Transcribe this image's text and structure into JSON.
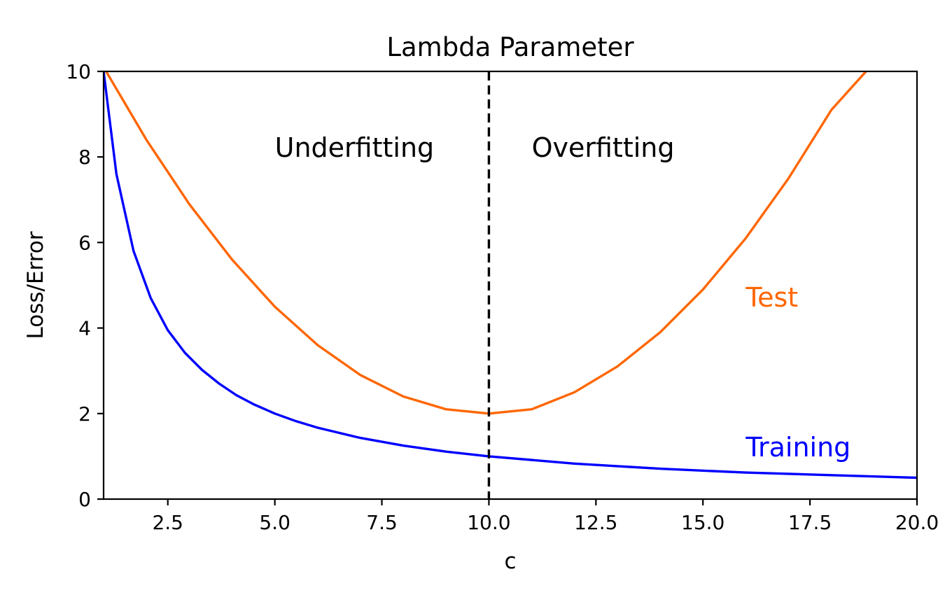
{
  "chart_data": {
    "type": "line",
    "title": "Lambda Parameter",
    "xlabel": "c",
    "ylabel": "Loss/Error",
    "xlim": [
      1,
      20
    ],
    "ylim": [
      0,
      10
    ],
    "xticks": [
      2.5,
      5.0,
      7.5,
      10.0,
      12.5,
      15.0,
      17.5,
      20.0
    ],
    "xtick_labels": [
      "2.5",
      "5.0",
      "7.5",
      "10.0",
      "12.5",
      "15.0",
      "17.5",
      "20.0"
    ],
    "yticks": [
      0,
      2,
      4,
      6,
      8,
      10
    ],
    "ytick_labels": [
      "0",
      "2",
      "4",
      "6",
      "8",
      "10"
    ],
    "grid": false,
    "legend": "none",
    "series": [
      {
        "color": "#0000ff",
        "x": [
          1.0,
          1.3,
          1.7,
          2.1,
          2.5,
          2.9,
          3.3,
          3.7,
          4.1,
          4.5,
          5.0,
          5.5,
          6.0,
          7.0,
          8.0,
          9.0,
          10.0,
          12.0,
          14.0,
          16.0,
          18.0,
          20.0
        ],
        "y": [
          10.0,
          7.6,
          5.8,
          4.7,
          3.95,
          3.42,
          3.02,
          2.7,
          2.43,
          2.22,
          2.0,
          1.82,
          1.67,
          1.43,
          1.25,
          1.11,
          1.0,
          0.83,
          0.71,
          0.62,
          0.56,
          0.5
        ]
      },
      {
        "color": "#ff6600",
        "x": [
          1.0,
          2.0,
          3.0,
          4.0,
          5.0,
          6.0,
          7.0,
          8.0,
          9.0,
          10.0,
          11.0,
          12.0,
          13.0,
          14.0,
          15.0,
          16.0,
          17.0,
          18.0,
          18.9
        ],
        "y": [
          10.1,
          8.4,
          6.9,
          5.6,
          4.5,
          3.6,
          2.9,
          2.4,
          2.1,
          2.0,
          2.1,
          2.5,
          3.1,
          3.9,
          4.9,
          6.1,
          7.5,
          9.1,
          10.1
        ]
      }
    ],
    "vline": {
      "x": 10.0,
      "style": "dashed",
      "color": "#000000"
    },
    "annotations": [
      {
        "text": "Underfitting",
        "x": 5.0,
        "y": 8.0,
        "color": "#000000"
      },
      {
        "text": "Overfitting",
        "x": 11.0,
        "y": 8.0,
        "color": "#000000"
      },
      {
        "text": "Test",
        "x": 16.0,
        "y": 4.5,
        "color": "#ff6600"
      },
      {
        "text": "Training",
        "x": 16.0,
        "y": 1.0,
        "color": "#0000ff"
      }
    ]
  }
}
